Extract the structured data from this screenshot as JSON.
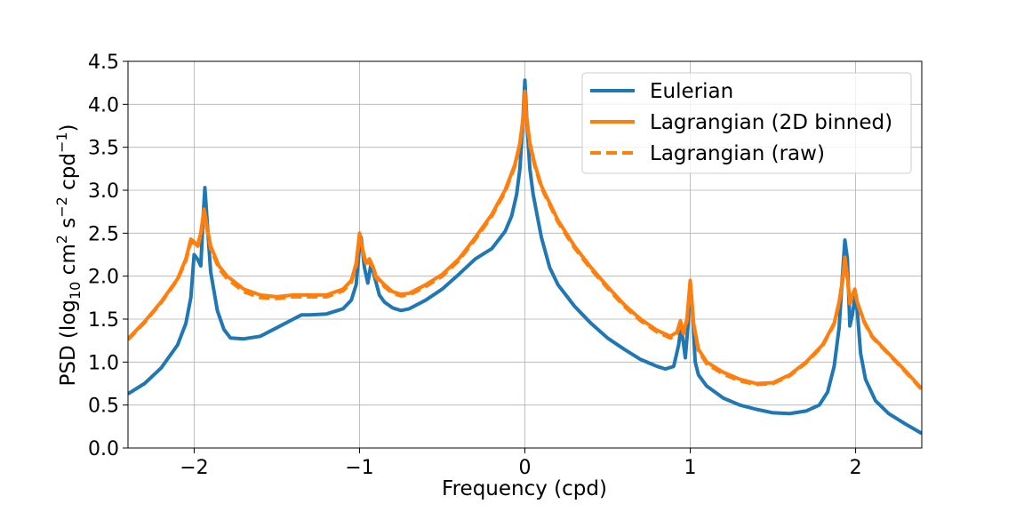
{
  "chart_data": {
    "type": "line",
    "xlabel": "Frequency (cpd)",
    "ylabel": {
      "prefix": "PSD (log",
      "sub": "10",
      "mid1": " cm",
      "sup1": "2",
      "mid2": " s",
      "sup2": "−2",
      "mid3": " cpd",
      "sup3": "−1",
      "suffix": ")"
    },
    "xlim": [
      -2.4,
      2.4
    ],
    "ylim": [
      0,
      4.5
    ],
    "xticks": [
      -2,
      -1,
      0,
      1,
      2
    ],
    "xtick_labels": [
      "−2",
      "−1",
      "0",
      "1",
      "2"
    ],
    "yticks": [
      0,
      0.5,
      1,
      1.5,
      2,
      2.5,
      3,
      3.5,
      4,
      4.5
    ],
    "ytick_labels": [
      "0.0",
      "0.5",
      "1.0",
      "1.5",
      "2.0",
      "2.5",
      "3.0",
      "3.5",
      "4.0",
      "4.5"
    ],
    "grid": true,
    "legend_position": "top-right",
    "series": [
      {
        "name": "Eulerian",
        "color": "#1f77b4",
        "dash": "solid",
        "points": [
          [
            -2.4,
            0.63
          ],
          [
            -2.3,
            0.75
          ],
          [
            -2.2,
            0.93
          ],
          [
            -2.1,
            1.2
          ],
          [
            -2.05,
            1.45
          ],
          [
            -2.02,
            1.75
          ],
          [
            -2.0,
            2.25
          ],
          [
            -1.98,
            2.2
          ],
          [
            -1.96,
            2.12
          ],
          [
            -1.945,
            2.7
          ],
          [
            -1.935,
            3.03
          ],
          [
            -1.92,
            2.6
          ],
          [
            -1.9,
            2.05
          ],
          [
            -1.86,
            1.6
          ],
          [
            -1.82,
            1.38
          ],
          [
            -1.78,
            1.28
          ],
          [
            -1.7,
            1.27
          ],
          [
            -1.6,
            1.3
          ],
          [
            -1.5,
            1.4
          ],
          [
            -1.4,
            1.5
          ],
          [
            -1.35,
            1.55
          ],
          [
            -1.3,
            1.55
          ],
          [
            -1.2,
            1.56
          ],
          [
            -1.1,
            1.62
          ],
          [
            -1.05,
            1.72
          ],
          [
            -1.02,
            1.9
          ],
          [
            -1.0,
            2.35
          ],
          [
            -0.99,
            2.45
          ],
          [
            -0.97,
            2.1
          ],
          [
            -0.95,
            1.92
          ],
          [
            -0.93,
            2.15
          ],
          [
            -0.91,
            2.0
          ],
          [
            -0.88,
            1.78
          ],
          [
            -0.85,
            1.7
          ],
          [
            -0.8,
            1.63
          ],
          [
            -0.75,
            1.6
          ],
          [
            -0.7,
            1.62
          ],
          [
            -0.6,
            1.72
          ],
          [
            -0.5,
            1.85
          ],
          [
            -0.4,
            2.02
          ],
          [
            -0.3,
            2.2
          ],
          [
            -0.2,
            2.32
          ],
          [
            -0.12,
            2.52
          ],
          [
            -0.08,
            2.7
          ],
          [
            -0.05,
            2.95
          ],
          [
            -0.03,
            3.25
          ],
          [
            -0.015,
            3.7
          ],
          [
            0.0,
            4.28
          ],
          [
            0.015,
            3.7
          ],
          [
            0.03,
            3.25
          ],
          [
            0.05,
            2.95
          ],
          [
            0.1,
            2.45
          ],
          [
            0.15,
            2.1
          ],
          [
            0.2,
            1.9
          ],
          [
            0.3,
            1.65
          ],
          [
            0.4,
            1.45
          ],
          [
            0.5,
            1.28
          ],
          [
            0.6,
            1.15
          ],
          [
            0.7,
            1.03
          ],
          [
            0.8,
            0.95
          ],
          [
            0.85,
            0.92
          ],
          [
            0.9,
            0.95
          ],
          [
            0.93,
            1.2
          ],
          [
            0.945,
            1.42
          ],
          [
            0.96,
            1.2
          ],
          [
            0.97,
            1.05
          ],
          [
            0.985,
            1.4
          ],
          [
            1.0,
            1.92
          ],
          [
            1.01,
            1.7
          ],
          [
            1.03,
            1.0
          ],
          [
            1.05,
            0.85
          ],
          [
            1.1,
            0.72
          ],
          [
            1.2,
            0.58
          ],
          [
            1.3,
            0.5
          ],
          [
            1.4,
            0.45
          ],
          [
            1.5,
            0.41
          ],
          [
            1.6,
            0.4
          ],
          [
            1.7,
            0.43
          ],
          [
            1.78,
            0.5
          ],
          [
            1.83,
            0.65
          ],
          [
            1.87,
            0.95
          ],
          [
            1.9,
            1.4
          ],
          [
            1.92,
            2.0
          ],
          [
            1.935,
            2.42
          ],
          [
            1.95,
            2.2
          ],
          [
            1.965,
            1.42
          ],
          [
            1.98,
            1.55
          ],
          [
            1.995,
            1.75
          ],
          [
            2.01,
            1.6
          ],
          [
            2.03,
            1.1
          ],
          [
            2.06,
            0.8
          ],
          [
            2.12,
            0.55
          ],
          [
            2.2,
            0.4
          ],
          [
            2.3,
            0.28
          ],
          [
            2.4,
            0.17
          ]
        ]
      },
      {
        "name": "Lagrangian (2D binned)",
        "color": "#ff7f0e",
        "dash": "solid",
        "points": [
          [
            -2.4,
            1.27
          ],
          [
            -2.3,
            1.47
          ],
          [
            -2.2,
            1.7
          ],
          [
            -2.1,
            1.97
          ],
          [
            -2.05,
            2.2
          ],
          [
            -2.02,
            2.43
          ],
          [
            -2.0,
            2.4
          ],
          [
            -1.98,
            2.35
          ],
          [
            -1.96,
            2.5
          ],
          [
            -1.94,
            2.78
          ],
          [
            -1.92,
            2.55
          ],
          [
            -1.9,
            2.35
          ],
          [
            -1.85,
            2.12
          ],
          [
            -1.8,
            2.0
          ],
          [
            -1.7,
            1.85
          ],
          [
            -1.6,
            1.78
          ],
          [
            -1.5,
            1.76
          ],
          [
            -1.4,
            1.78
          ],
          [
            -1.3,
            1.78
          ],
          [
            -1.2,
            1.78
          ],
          [
            -1.1,
            1.85
          ],
          [
            -1.05,
            1.95
          ],
          [
            -1.02,
            2.15
          ],
          [
            -1.0,
            2.5
          ],
          [
            -0.98,
            2.3
          ],
          [
            -0.96,
            2.15
          ],
          [
            -0.94,
            2.2
          ],
          [
            -0.92,
            2.12
          ],
          [
            -0.9,
            2.0
          ],
          [
            -0.85,
            1.9
          ],
          [
            -0.8,
            1.82
          ],
          [
            -0.75,
            1.79
          ],
          [
            -0.7,
            1.8
          ],
          [
            -0.6,
            1.9
          ],
          [
            -0.5,
            2.02
          ],
          [
            -0.4,
            2.2
          ],
          [
            -0.3,
            2.45
          ],
          [
            -0.2,
            2.72
          ],
          [
            -0.12,
            3.0
          ],
          [
            -0.06,
            3.3
          ],
          [
            -0.03,
            3.55
          ],
          [
            -0.01,
            3.85
          ],
          [
            0.0,
            4.15
          ],
          [
            0.01,
            3.85
          ],
          [
            0.03,
            3.55
          ],
          [
            0.06,
            3.3
          ],
          [
            0.1,
            3.05
          ],
          [
            0.15,
            2.85
          ],
          [
            0.2,
            2.65
          ],
          [
            0.3,
            2.35
          ],
          [
            0.4,
            2.1
          ],
          [
            0.5,
            1.88
          ],
          [
            0.6,
            1.67
          ],
          [
            0.7,
            1.5
          ],
          [
            0.8,
            1.37
          ],
          [
            0.88,
            1.3
          ],
          [
            0.92,
            1.35
          ],
          [
            0.94,
            1.48
          ],
          [
            0.96,
            1.35
          ],
          [
            0.98,
            1.5
          ],
          [
            1.0,
            1.95
          ],
          [
            1.02,
            1.45
          ],
          [
            1.05,
            1.15
          ],
          [
            1.1,
            1.0
          ],
          [
            1.2,
            0.88
          ],
          [
            1.3,
            0.8
          ],
          [
            1.4,
            0.75
          ],
          [
            1.5,
            0.76
          ],
          [
            1.6,
            0.85
          ],
          [
            1.7,
            1.0
          ],
          [
            1.8,
            1.2
          ],
          [
            1.87,
            1.45
          ],
          [
            1.9,
            1.7
          ],
          [
            1.92,
            1.95
          ],
          [
            1.935,
            2.22
          ],
          [
            1.95,
            2.0
          ],
          [
            1.965,
            1.7
          ],
          [
            1.98,
            1.78
          ],
          [
            1.995,
            1.85
          ],
          [
            2.01,
            1.7
          ],
          [
            2.05,
            1.48
          ],
          [
            2.1,
            1.3
          ],
          [
            2.2,
            1.1
          ],
          [
            2.3,
            0.9
          ],
          [
            2.4,
            0.69
          ]
        ]
      },
      {
        "name": "Lagrangian (raw)",
        "color": "#ff7f0e",
        "dash": "dashed",
        "points": [
          [
            -2.4,
            1.26
          ],
          [
            -2.3,
            1.46
          ],
          [
            -2.2,
            1.69
          ],
          [
            -2.1,
            1.96
          ],
          [
            -2.05,
            2.18
          ],
          [
            -2.02,
            2.4
          ],
          [
            -2.0,
            2.38
          ],
          [
            -1.98,
            2.33
          ],
          [
            -1.96,
            2.47
          ],
          [
            -1.94,
            2.74
          ],
          [
            -1.92,
            2.52
          ],
          [
            -1.9,
            2.32
          ],
          [
            -1.85,
            2.09
          ],
          [
            -1.8,
            1.97
          ],
          [
            -1.7,
            1.82
          ],
          [
            -1.6,
            1.75
          ],
          [
            -1.5,
            1.74
          ],
          [
            -1.4,
            1.76
          ],
          [
            -1.3,
            1.76
          ],
          [
            -1.2,
            1.76
          ],
          [
            -1.1,
            1.83
          ],
          [
            -1.05,
            1.93
          ],
          [
            -1.02,
            2.12
          ],
          [
            -1.0,
            2.47
          ],
          [
            -0.98,
            2.28
          ],
          [
            -0.96,
            2.13
          ],
          [
            -0.94,
            2.18
          ],
          [
            -0.92,
            2.1
          ],
          [
            -0.9,
            1.98
          ],
          [
            -0.85,
            1.88
          ],
          [
            -0.8,
            1.8
          ],
          [
            -0.75,
            1.77
          ],
          [
            -0.7,
            1.78
          ],
          [
            -0.6,
            1.88
          ],
          [
            -0.5,
            2.0
          ],
          [
            -0.4,
            2.18
          ],
          [
            -0.3,
            2.43
          ],
          [
            -0.2,
            2.7
          ],
          [
            -0.12,
            2.98
          ],
          [
            -0.06,
            3.28
          ],
          [
            -0.03,
            3.53
          ],
          [
            -0.01,
            3.82
          ],
          [
            0.0,
            4.1
          ],
          [
            0.01,
            3.82
          ],
          [
            0.03,
            3.53
          ],
          [
            0.06,
            3.28
          ],
          [
            0.1,
            3.03
          ],
          [
            0.15,
            2.83
          ],
          [
            0.2,
            2.63
          ],
          [
            0.3,
            2.33
          ],
          [
            0.4,
            2.08
          ],
          [
            0.5,
            1.86
          ],
          [
            0.6,
            1.65
          ],
          [
            0.7,
            1.48
          ],
          [
            0.8,
            1.35
          ],
          [
            0.88,
            1.28
          ],
          [
            0.92,
            1.33
          ],
          [
            0.94,
            1.45
          ],
          [
            0.96,
            1.33
          ],
          [
            0.98,
            1.48
          ],
          [
            1.0,
            1.9
          ],
          [
            1.02,
            1.43
          ],
          [
            1.05,
            1.13
          ],
          [
            1.1,
            0.98
          ],
          [
            1.2,
            0.86
          ],
          [
            1.3,
            0.78
          ],
          [
            1.4,
            0.74
          ],
          [
            1.5,
            0.75
          ],
          [
            1.6,
            0.84
          ],
          [
            1.7,
            0.99
          ],
          [
            1.8,
            1.19
          ],
          [
            1.87,
            1.44
          ],
          [
            1.9,
            1.68
          ],
          [
            1.92,
            1.92
          ],
          [
            1.935,
            2.18
          ],
          [
            1.95,
            1.97
          ],
          [
            1.965,
            1.68
          ],
          [
            1.98,
            1.76
          ],
          [
            1.995,
            1.83
          ],
          [
            2.01,
            1.69
          ],
          [
            2.05,
            1.47
          ],
          [
            2.1,
            1.29
          ],
          [
            2.2,
            1.09
          ],
          [
            2.3,
            0.89
          ],
          [
            2.4,
            0.68
          ]
        ]
      }
    ]
  }
}
